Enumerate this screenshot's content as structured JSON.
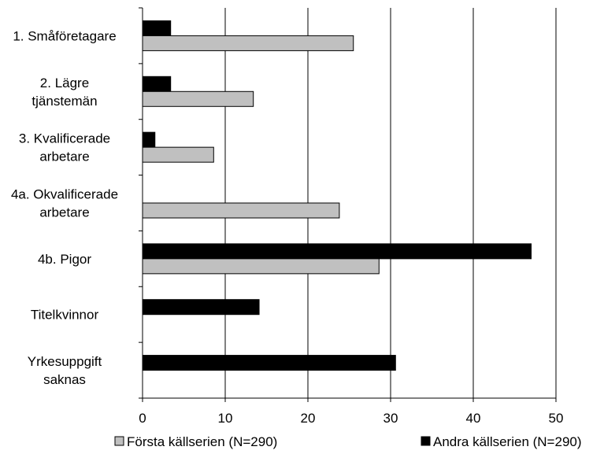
{
  "chart_data": {
    "type": "bar",
    "orientation": "horizontal",
    "categories": [
      [
        "1. Småföretagare"
      ],
      [
        "2. Lägre",
        "tjänstemän"
      ],
      [
        "3. Kvalificerade",
        "arbetare"
      ],
      [
        "4a. Okvalificerade",
        "arbetare"
      ],
      [
        "4b. Pigor"
      ],
      [
        "Titelkvinnor"
      ],
      [
        "Yrkesuppgift",
        "saknas"
      ]
    ],
    "series": [
      {
        "name": "Andra källserien (N=290)",
        "color": "#000000",
        "values": [
          3.4,
          3.4,
          1.5,
          0,
          47.0,
          14.1,
          30.6
        ]
      },
      {
        "name": "Första källserien (N=290)",
        "color": "#c0c0c0",
        "values": [
          25.5,
          13.4,
          8.6,
          23.8,
          28.6,
          0,
          0
        ]
      }
    ],
    "xlim": [
      0,
      50
    ],
    "xticks": [
      "0",
      "10",
      "20",
      "30",
      "40",
      "50"
    ],
    "grid": true,
    "legend": [
      {
        "label": "Första källserien (N=290)",
        "color": "#c0c0c0"
      },
      {
        "label": "Andra källserien (N=290)",
        "color": "#000000"
      }
    ],
    "legend_position": "bottom"
  }
}
